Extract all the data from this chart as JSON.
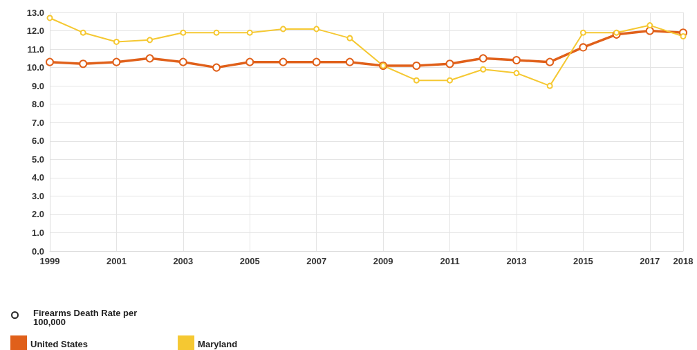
{
  "chart_data": {
    "type": "line",
    "x": [
      1999,
      2000,
      2001,
      2002,
      2003,
      2004,
      2005,
      2006,
      2007,
      2008,
      2009,
      2010,
      2011,
      2012,
      2013,
      2014,
      2015,
      2016,
      2017,
      2018
    ],
    "series": [
      {
        "name": "United States",
        "color": "#e0601a",
        "values": [
          10.3,
          10.2,
          10.3,
          10.5,
          10.3,
          10.0,
          10.3,
          10.3,
          10.3,
          10.3,
          10.1,
          10.1,
          10.2,
          10.5,
          10.4,
          10.3,
          11.1,
          11.8,
          12.0,
          11.9
        ]
      },
      {
        "name": "Maryland",
        "color": "#f5c832",
        "values": [
          12.7,
          11.9,
          11.4,
          11.5,
          11.9,
          11.9,
          11.9,
          12.1,
          12.1,
          11.6,
          10.1,
          9.3,
          9.3,
          9.9,
          9.7,
          9.0,
          11.9,
          11.9,
          12.3,
          11.7
        ]
      }
    ],
    "legend_title": "Firearms Death Rate per 100,000",
    "xlim": [
      1999,
      2018
    ],
    "xticks": [
      1999,
      2001,
      2003,
      2005,
      2007,
      2009,
      2011,
      2013,
      2015,
      2017,
      2018
    ],
    "ylim": [
      0,
      13
    ],
    "yticks": [
      {
        "value": 0,
        "label": "0.0"
      },
      {
        "value": 1,
        "label": "1.0"
      },
      {
        "value": 2,
        "label": "2.0"
      },
      {
        "value": 3,
        "label": "3.0"
      },
      {
        "value": 4,
        "label": "4.0"
      },
      {
        "value": 5,
        "label": "5.0"
      },
      {
        "value": 6,
        "label": "6.0"
      },
      {
        "value": 7,
        "label": "7.0"
      },
      {
        "value": 8,
        "label": "8.0"
      },
      {
        "value": 9,
        "label": "9.0"
      },
      {
        "value": 10,
        "label": "10.0"
      },
      {
        "value": 11,
        "label": "11.0"
      },
      {
        "value": 12,
        "label": "12.0"
      },
      {
        "value": 13,
        "label": "13.0"
      }
    ],
    "grid": true,
    "legend": "bottom left",
    "marker": "circle",
    "line_style": "solid"
  }
}
